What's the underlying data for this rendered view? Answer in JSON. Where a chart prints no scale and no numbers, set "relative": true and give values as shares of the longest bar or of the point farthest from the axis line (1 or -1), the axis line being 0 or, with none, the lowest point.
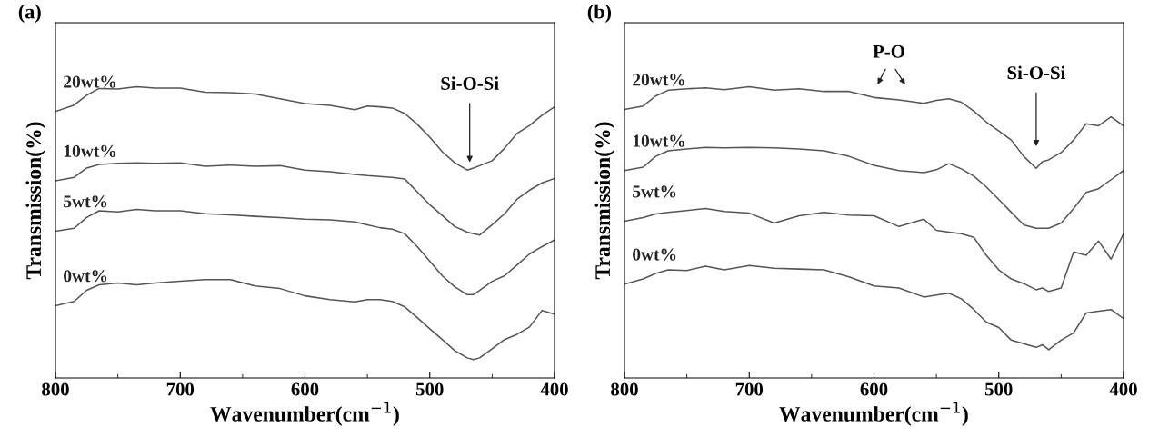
{
  "chart_data": [
    {
      "type": "line",
      "title": "(a)",
      "xlabel": "Wavenumber(cm$^{−1}$)",
      "ylabel": "Transmission(%)",
      "relative": true,
      "tick_labels": "x",
      "grid": false,
      "legend": false,
      "marker": "none",
      "line_style": "solid",
      "xlim": [
        800,
        400
      ],
      "xticks": [
        800,
        700,
        600,
        500,
        400
      ],
      "x": [
        800,
        785,
        775,
        765,
        750,
        735,
        720,
        700,
        680,
        660,
        640,
        620,
        600,
        580,
        560,
        550,
        540,
        530,
        520,
        510,
        500,
        490,
        480,
        470,
        465,
        460,
        450,
        440,
        430,
        420,
        410,
        400
      ],
      "series": [
        {
          "name": "20wt%",
          "color": "#555555",
          "values": [
            0.915,
            0.937,
            0.971,
            0.994,
            0.992,
            1.0,
            0.995,
            0.995,
            0.981,
            0.98,
            0.975,
            0.959,
            0.942,
            0.936,
            0.921,
            0.934,
            0.931,
            0.927,
            0.908,
            0.871,
            0.827,
            0.777,
            0.739,
            0.714,
            0.721,
            0.729,
            0.746,
            0.789,
            0.84,
            0.867,
            0.902,
            0.931
          ]
        },
        {
          "name": "10wt%",
          "color": "#555555",
          "values": [
            0.677,
            0.689,
            0.721,
            0.733,
            0.737,
            0.739,
            0.737,
            0.739,
            0.727,
            0.731,
            0.727,
            0.729,
            0.714,
            0.708,
            0.699,
            0.695,
            0.692,
            0.689,
            0.683,
            0.639,
            0.595,
            0.558,
            0.52,
            0.501,
            0.495,
            0.491,
            0.526,
            0.564,
            0.614,
            0.645,
            0.67,
            0.685
          ]
        },
        {
          "name": "5wt%",
          "color": "#555555",
          "values": [
            0.504,
            0.514,
            0.551,
            0.574,
            0.57,
            0.579,
            0.574,
            0.574,
            0.564,
            0.56,
            0.555,
            0.551,
            0.545,
            0.543,
            0.536,
            0.526,
            0.516,
            0.511,
            0.495,
            0.451,
            0.401,
            0.351,
            0.313,
            0.286,
            0.286,
            0.301,
            0.332,
            0.351,
            0.388,
            0.426,
            0.451,
            0.474
          ]
        },
        {
          "name": "0wt%",
          "color": "#555555",
          "values": [
            0.248,
            0.263,
            0.301,
            0.32,
            0.326,
            0.32,
            0.326,
            0.332,
            0.338,
            0.338,
            0.316,
            0.307,
            0.282,
            0.269,
            0.261,
            0.269,
            0.269,
            0.263,
            0.244,
            0.207,
            0.169,
            0.132,
            0.094,
            0.069,
            0.063,
            0.069,
            0.1,
            0.132,
            0.15,
            0.175,
            0.232,
            0.219
          ]
        }
      ],
      "annotations": [
        "Si-O-Si"
      ]
    },
    {
      "type": "line",
      "title": "(b)",
      "xlabel": "Wavenumber(cm$^{−1}$)",
      "ylabel": "Transmission(%)",
      "relative": true,
      "tick_labels": "x",
      "grid": false,
      "legend": false,
      "marker": "none",
      "line_style": "solid",
      "xlim": [
        800,
        400
      ],
      "xticks": [
        800,
        700,
        600,
        500,
        400
      ],
      "x": [
        800,
        785,
        775,
        765,
        750,
        735,
        720,
        700,
        680,
        660,
        640,
        620,
        600,
        580,
        560,
        550,
        540,
        530,
        520,
        510,
        500,
        490,
        480,
        470,
        465,
        460,
        450,
        440,
        430,
        420,
        410,
        400
      ],
      "series": [
        {
          "name": "20wt%",
          "color": "#555555",
          "values": [
            0.922,
            0.934,
            0.968,
            0.988,
            0.993,
            0.996,
            0.99,
            1.0,
            0.988,
            0.993,
            0.984,
            0.984,
            0.963,
            0.955,
            0.943,
            0.953,
            0.959,
            0.947,
            0.916,
            0.879,
            0.848,
            0.817,
            0.761,
            0.72,
            0.743,
            0.749,
            0.774,
            0.817,
            0.873,
            0.866,
            0.897,
            0.866
          ]
        },
        {
          "name": "10wt%",
          "color": "#555555",
          "values": [
            0.712,
            0.724,
            0.761,
            0.78,
            0.786,
            0.792,
            0.79,
            0.792,
            0.79,
            0.786,
            0.78,
            0.761,
            0.73,
            0.712,
            0.705,
            0.715,
            0.736,
            0.718,
            0.693,
            0.656,
            0.613,
            0.569,
            0.526,
            0.514,
            0.514,
            0.514,
            0.532,
            0.582,
            0.637,
            0.65,
            0.681,
            0.712
          ]
        },
        {
          "name": "5wt%",
          "color": "#555555",
          "values": [
            0.538,
            0.551,
            0.563,
            0.569,
            0.575,
            0.582,
            0.572,
            0.566,
            0.532,
            0.557,
            0.569,
            0.559,
            0.557,
            0.52,
            0.545,
            0.507,
            0.501,
            0.495,
            0.483,
            0.421,
            0.371,
            0.34,
            0.324,
            0.303,
            0.309,
            0.297,
            0.309,
            0.433,
            0.421,
            0.47,
            0.408,
            0.495
          ]
        },
        {
          "name": "0wt%",
          "color": "#555555",
          "values": [
            0.322,
            0.34,
            0.359,
            0.371,
            0.369,
            0.384,
            0.371,
            0.386,
            0.377,
            0.374,
            0.371,
            0.347,
            0.316,
            0.309,
            0.278,
            0.285,
            0.291,
            0.272,
            0.235,
            0.192,
            0.173,
            0.13,
            0.118,
            0.105,
            0.114,
            0.097,
            0.13,
            0.155,
            0.223,
            0.229,
            0.235,
            0.204
          ]
        }
      ],
      "annotations": [
        "P-O",
        "Si-O-Si"
      ]
    }
  ]
}
